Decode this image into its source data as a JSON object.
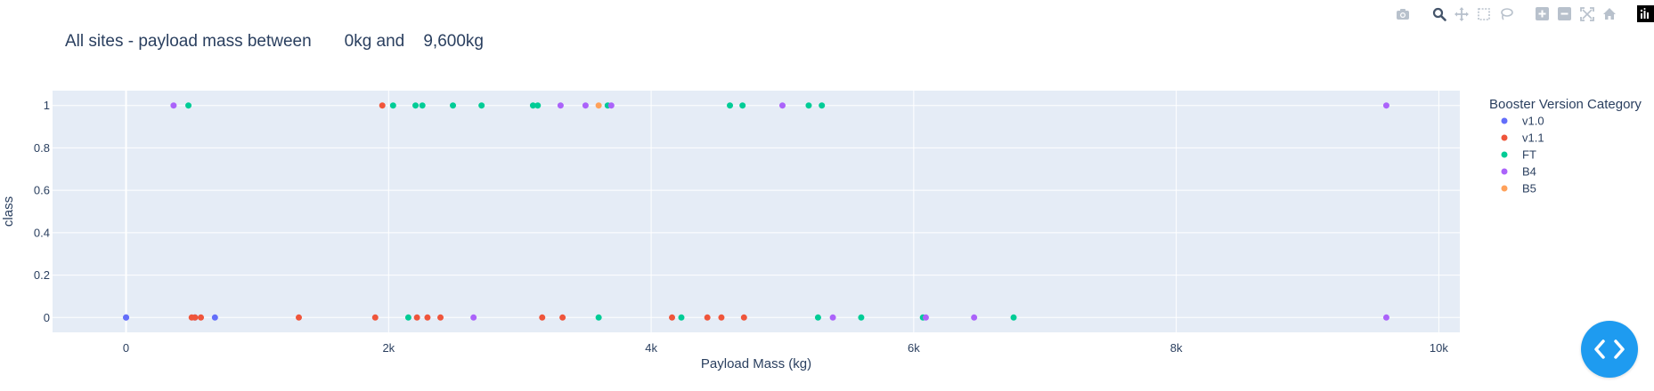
{
  "modebar": {
    "buttons": [
      {
        "icon": "camera-icon",
        "name": "download-plot-button"
      },
      {
        "icon": "zoom-icon",
        "name": "zoom-button"
      },
      {
        "icon": "pan-icon",
        "name": "pan-button"
      },
      {
        "icon": "box-select-icon",
        "name": "box-select-button"
      },
      {
        "icon": "lasso-select-icon",
        "name": "lasso-select-button"
      },
      {
        "icon": "zoom-in-icon",
        "name": "zoom-in-button"
      },
      {
        "icon": "zoom-out-icon",
        "name": "zoom-out-button"
      },
      {
        "icon": "autoscale-icon",
        "name": "autoscale-button"
      },
      {
        "icon": "home-icon",
        "name": "reset-axes-button"
      },
      {
        "icon": "plotly-logo-icon",
        "name": "plotly-logo"
      }
    ]
  },
  "chart_data": {
    "type": "scatter",
    "title": "All sites - payload mass between       0kg and    9,600kg",
    "xlabel": "Payload Mass (kg)",
    "ylabel": "class",
    "xlim": [
      -560,
      10160
    ],
    "ylim": [
      -0.07,
      1.07
    ],
    "x_ticks": [
      0,
      2000,
      4000,
      6000,
      8000,
      10000
    ],
    "x_tick_labels": [
      "0",
      "2k",
      "4k",
      "6k",
      "8k",
      "10k"
    ],
    "y_ticks": [
      0,
      0.2,
      0.4,
      0.6,
      0.8,
      1
    ],
    "y_tick_labels": [
      "0",
      "0.2",
      "0.4",
      "0.6",
      "0.8",
      "1"
    ],
    "grid": true,
    "legend_title": "Booster Version Category",
    "legend_position": "right",
    "colors": {
      "v1.0": "#636efa",
      "v1.1": "#ef553b",
      "FT": "#00cc96",
      "B4": "#ab63fa",
      "B5": "#ffa15a"
    },
    "series": [
      {
        "name": "v1.0",
        "x": [
          0,
          0,
          525,
          677
        ],
        "y": [
          0,
          0,
          0,
          0
        ]
      },
      {
        "name": "v1.1",
        "x": [
          500,
          525,
          570,
          1316,
          1898,
          1952,
          2216,
          2296,
          2395,
          3170,
          3325,
          4159,
          4428,
          4535,
          4707
        ],
        "y": [
          0,
          0,
          0,
          0,
          0,
          1,
          0,
          0,
          0,
          0,
          0,
          0,
          0,
          0,
          0
        ]
      },
      {
        "name": "FT",
        "x": [
          475,
          2034,
          2205,
          2257,
          2490,
          2708,
          3100,
          3136,
          3669,
          4600,
          4696,
          5200,
          5300,
          2150,
          3600,
          4230,
          5271,
          5600,
          6070,
          6761
        ],
        "y": [
          1,
          1,
          1,
          1,
          1,
          1,
          1,
          1,
          1,
          1,
          1,
          1,
          1,
          0,
          0,
          0,
          0,
          0,
          0,
          0
        ]
      },
      {
        "name": "B4",
        "x": [
          362,
          3310,
          3500,
          3696,
          5000,
          9600,
          2647,
          5384,
          6092,
          6460,
          9600
        ],
        "y": [
          1,
          1,
          1,
          1,
          1,
          1,
          0,
          0,
          0,
          0,
          0
        ]
      },
      {
        "name": "B5",
        "x": [
          3600
        ],
        "y": [
          1
        ]
      }
    ]
  }
}
